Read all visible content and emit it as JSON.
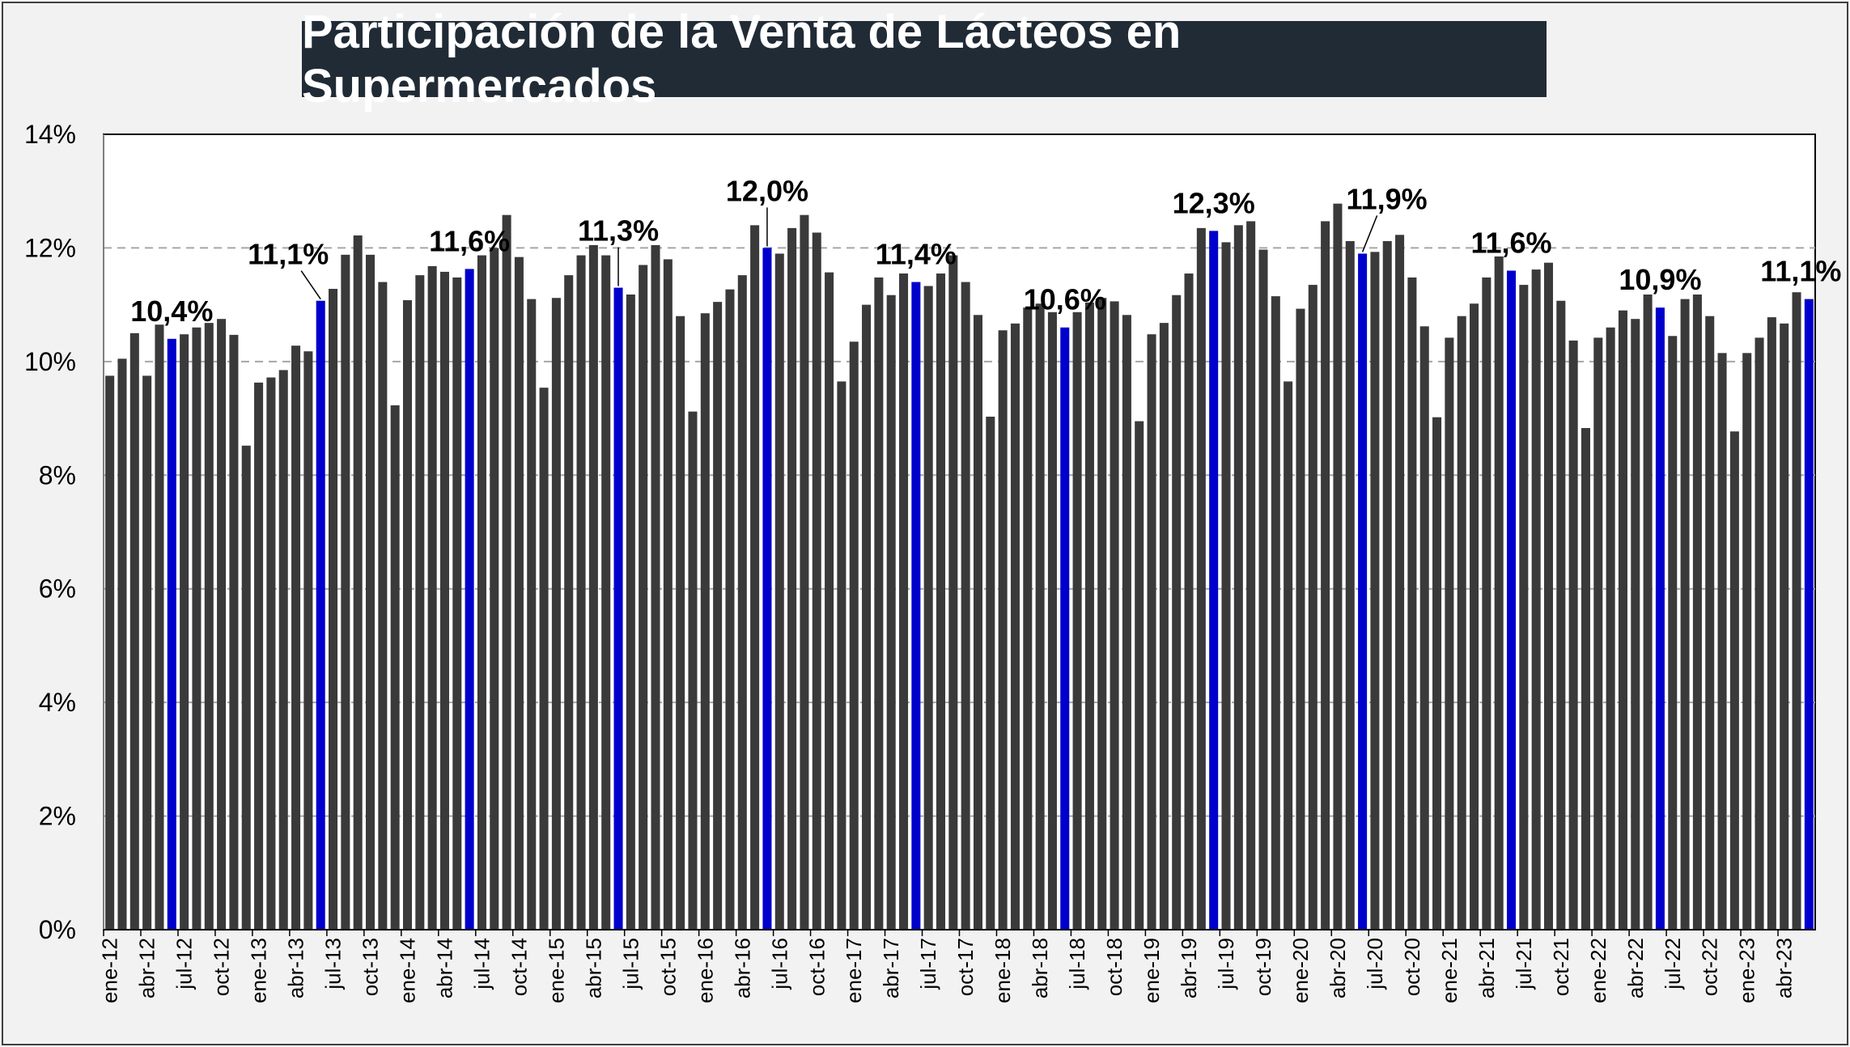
{
  "chart_data": {
    "type": "bar",
    "title": "Participación de la Venta de Lácteos en Supermercados",
    "xlabel": "",
    "ylabel": "",
    "ylim": [
      0,
      14
    ],
    "ytick_labels": [
      "0%",
      "2%",
      "4%",
      "6%",
      "8%",
      "10%",
      "12%",
      "14%"
    ],
    "grid": "horizontal dashed",
    "colors": {
      "default": "#3a3a3a",
      "highlight": "#0000cc",
      "plot_bg": "#ffffff",
      "grid": "#a6a6a6"
    },
    "x_tick_labels": [
      "ene-12",
      "abr-12",
      "jul-12",
      "oct-12",
      "ene-13",
      "abr-13",
      "jul-13",
      "oct-13",
      "ene-14",
      "abr-14",
      "jul-14",
      "oct-14",
      "ene-15",
      "abr-15",
      "jul-15",
      "oct-15",
      "ene-16",
      "abr-16",
      "jul-16",
      "oct-16",
      "ene-17",
      "abr-17",
      "jul-17",
      "oct-17",
      "ene-18",
      "abr-18",
      "jul-18",
      "oct-18",
      "ene-19",
      "abr-19",
      "jul-19",
      "oct-19",
      "ene-20",
      "abr-20",
      "jul-20",
      "oct-20",
      "ene-21",
      "abr-21",
      "jul-21",
      "oct-21",
      "ene-22",
      "abr-22",
      "jul-22",
      "oct-22",
      "ene-23",
      "abr-23"
    ],
    "values": [
      9.75,
      10.05,
      10.5,
      9.75,
      10.65,
      10.4,
      10.48,
      10.6,
      10.68,
      10.75,
      10.47,
      8.52,
      9.63,
      9.72,
      9.85,
      10.28,
      10.18,
      11.07,
      11.28,
      11.88,
      12.22,
      11.88,
      11.4,
      9.23,
      11.08,
      11.52,
      11.68,
      11.58,
      11.48,
      11.63,
      11.87,
      12.0,
      12.58,
      11.84,
      11.1,
      9.54,
      11.12,
      11.52,
      11.87,
      12.05,
      11.87,
      11.3,
      11.18,
      11.7,
      12.05,
      11.8,
      10.8,
      9.12,
      10.85,
      11.05,
      11.27,
      11.52,
      12.4,
      12.0,
      11.9,
      12.35,
      12.58,
      12.27,
      11.57,
      9.65,
      10.35,
      11.0,
      11.48,
      11.17,
      11.55,
      11.4,
      11.33,
      11.55,
      11.87,
      11.4,
      10.82,
      9.03,
      10.55,
      10.67,
      10.95,
      11.02,
      10.87,
      10.6,
      10.87,
      11.04,
      11.12,
      11.06,
      10.82,
      8.95,
      10.48,
      10.68,
      11.17,
      11.55,
      12.35,
      12.3,
      12.1,
      12.4,
      12.47,
      11.97,
      11.15,
      9.65,
      10.93,
      11.35,
      12.47,
      12.78,
      12.12,
      11.9,
      11.93,
      12.12,
      12.23,
      11.48,
      10.62,
      9.02,
      10.42,
      10.8,
      11.02,
      11.48,
      11.85,
      11.6,
      11.35,
      11.62,
      11.74,
      11.07,
      10.37,
      8.83,
      10.42,
      10.6,
      10.9,
      10.75,
      11.18,
      10.95,
      10.45,
      11.1,
      11.18,
      10.8,
      10.15,
      8.77,
      10.15,
      10.42,
      10.78,
      10.67,
      11.22,
      11.1
    ],
    "highlights": [
      {
        "index": 5,
        "label": "10,4%"
      },
      {
        "index": 17,
        "label": "11,1%"
      },
      {
        "index": 29,
        "label": "11,6%"
      },
      {
        "index": 41,
        "label": "11,3%"
      },
      {
        "index": 53,
        "label": "12,0%"
      },
      {
        "index": 65,
        "label": "11,4%"
      },
      {
        "index": 77,
        "label": "10,6%"
      },
      {
        "index": 89,
        "label": "12,3%"
      },
      {
        "index": 101,
        "label": "11,9%"
      },
      {
        "index": 113,
        "label": "11,6%"
      },
      {
        "index": 125,
        "label": "10,9%"
      },
      {
        "index": 137,
        "label": "11,1%"
      }
    ]
  }
}
